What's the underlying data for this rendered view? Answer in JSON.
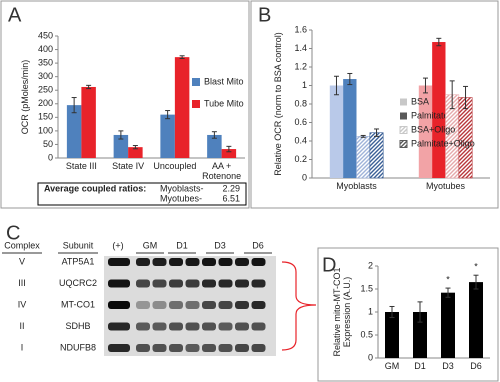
{
  "panels": [
    "A",
    "B",
    "C",
    "D"
  ],
  "chart_data": [
    {
      "type": "bar",
      "ylabel": "OCR (pMoles/min)",
      "categories": [
        "State III",
        "State IV",
        "Uncoupled",
        "AA + Rotenone"
      ],
      "series": [
        {
          "name": "Blast Mito",
          "color": "#4f81bd",
          "values": [
            195,
            85,
            160,
            85
          ],
          "errors": [
            28,
            15,
            15,
            12
          ]
        },
        {
          "name": "Tube Mito",
          "color": "#e8232a",
          "values": [
            262,
            40,
            372,
            33
          ],
          "errors": [
            6,
            6,
            5,
            10
          ]
        }
      ],
      "ylim": [
        0,
        450
      ],
      "yticks": [
        0,
        50,
        100,
        150,
        200,
        250,
        300,
        350,
        400,
        450
      ],
      "legend": "right",
      "box": {
        "title": "Average coupled ratios:",
        "rows": [
          {
            "label": "Myoblasts-",
            "value": 2.29
          },
          {
            "label": "Myotubes-",
            "value": 6.51
          }
        ]
      }
    },
    {
      "type": "bar",
      "ylabel": "Relative OCR (norm to BSA control)",
      "categories": [
        "Myoblasts",
        "Myotubes"
      ],
      "series": [
        {
          "name": "BSA",
          "color": "#c8c8c8",
          "category_colors": [
            "#b9c9e9",
            "#f2a3a6"
          ],
          "hatched": false,
          "values": [
            1.0,
            1.0
          ],
          "errors": [
            0.1,
            0.08
          ]
        },
        {
          "name": "Palmitate",
          "color": "#595959",
          "category_colors": [
            "#4f81bd",
            "#e8232a"
          ],
          "hatched": false,
          "values": [
            1.07,
            1.47
          ],
          "errors": [
            0.06,
            0.04
          ]
        },
        {
          "name": "BSA+Oligo",
          "color": "#c8c8c8",
          "category_colors": [
            "#9fb3d9",
            "#e6a9ab"
          ],
          "hatched": true,
          "values": [
            0.45,
            0.9
          ],
          "errors": [
            0.01,
            0.15
          ]
        },
        {
          "name": "Palmitate+Oligo",
          "color": "#595959",
          "category_colors": [
            "#3a5f96",
            "#b8373b"
          ],
          "hatched": true,
          "values": [
            0.49,
            0.87
          ],
          "errors": [
            0.04,
            0.12
          ]
        }
      ],
      "ylim": [
        0,
        1.6
      ],
      "yticks": [
        0,
        0.2,
        0.4,
        0.6,
        0.8,
        1,
        1.2,
        1.4,
        1.6
      ],
      "legend": "right"
    },
    {
      "type": "bar",
      "ylabel": "Relative mito-MT-CO1 Expression (A.U.)",
      "categories": [
        "GM",
        "D1",
        "D3",
        "D6"
      ],
      "series": [
        {
          "color": "#000000",
          "values": [
            1.0,
            1.0,
            1.42,
            1.65
          ],
          "errors": [
            0.12,
            0.22,
            0.1,
            0.15
          ]
        }
      ],
      "ylim": [
        0,
        2
      ],
      "yticks": [
        0,
        0.5,
        1,
        1.5,
        2
      ],
      "annotations": [
        {
          "text": "*",
          "x": "D3"
        },
        {
          "text": "*",
          "x": "D6"
        }
      ]
    }
  ],
  "blot": {
    "headers": [
      "Complex",
      "Subunit",
      "(+)",
      "GM",
      "D1",
      "D3",
      "D6"
    ],
    "rows": [
      [
        "V",
        "ATP5A1"
      ],
      [
        "III",
        "UQCRC2"
      ],
      [
        "IV",
        "MT-CO1"
      ],
      [
        "II",
        "SDHB"
      ],
      [
        "I",
        "NDUFB8"
      ]
    ]
  }
}
